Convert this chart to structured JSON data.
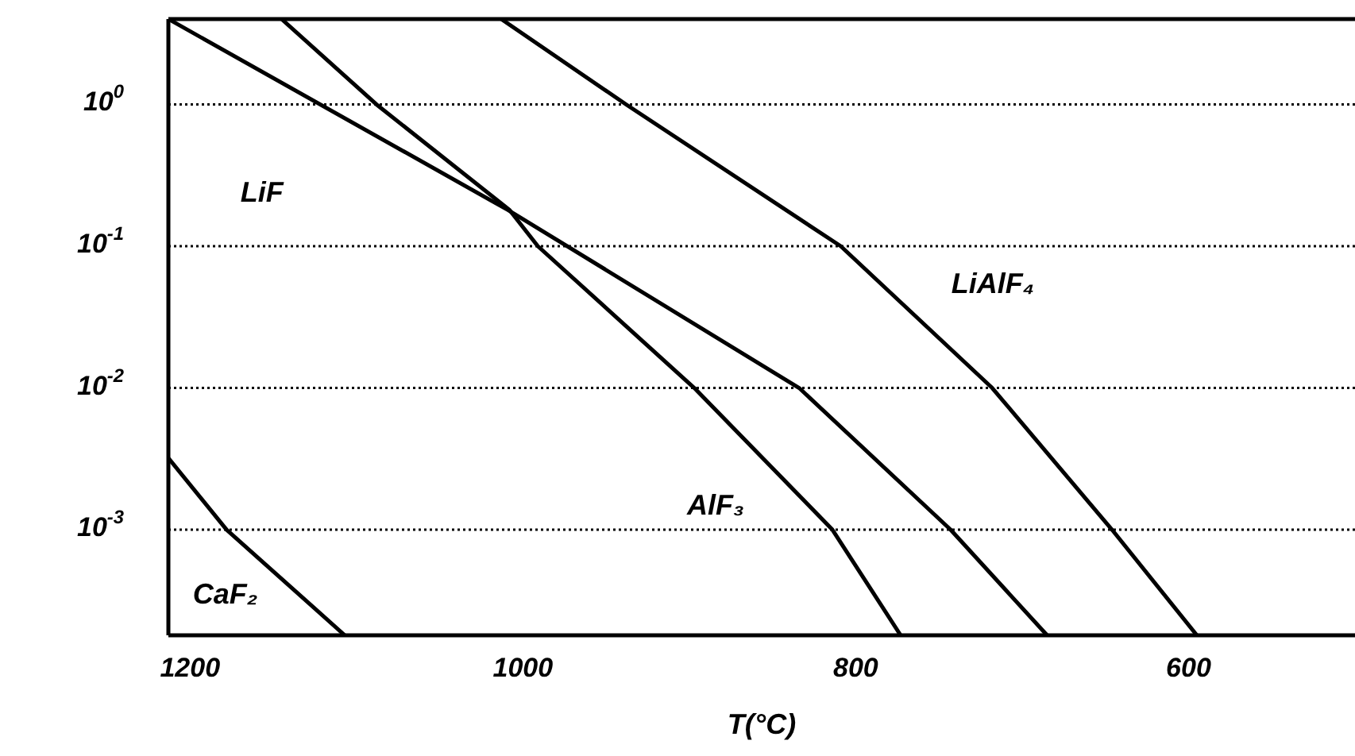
{
  "chart_data": {
    "type": "line",
    "xlabel": "T(°C)",
    "series": [
      {
        "name": "LiF",
        "color": "#000000",
        "x": [
          1213,
          1009,
          834,
          743,
          685
        ],
        "values": [
          4,
          0.18,
          0.01,
          0.001,
          0.00018
        ]
      },
      {
        "name": "AlF₃",
        "color": "#000000",
        "x": [
          1145,
          1088,
          1008,
          991,
          897,
          814,
          773
        ],
        "values": [
          4,
          1,
          0.18,
          0.1,
          0.01,
          0.001,
          0.00018
        ]
      },
      {
        "name": "LiAlF₄",
        "color": "#000000",
        "x": [
          1013,
          938,
          809,
          718,
          646,
          595
        ],
        "values": [
          4,
          1,
          0.1,
          0.01,
          0.001,
          0.00018
        ]
      },
      {
        "name": "CaF₂",
        "color": "#000000",
        "x": [
          1213,
          1178,
          1107
        ],
        "values": [
          0.0032,
          0.001,
          0.00018
        ]
      }
    ],
    "xlim": [
      1213,
      500
    ],
    "xticks": [
      1200,
      1000,
      800,
      600
    ],
    "ylim": [
      0.00018,
      4
    ],
    "yticks": [
      {
        "value": 1,
        "label": "10$^{0}$"
      },
      {
        "value": 0.1,
        "label": "10$^{-1}$"
      },
      {
        "value": 0.01,
        "label": "10$^{-2}$"
      },
      {
        "value": 0.001,
        "label": "10$^{-3}$"
      }
    ],
    "log": "y",
    "grid": "y"
  }
}
